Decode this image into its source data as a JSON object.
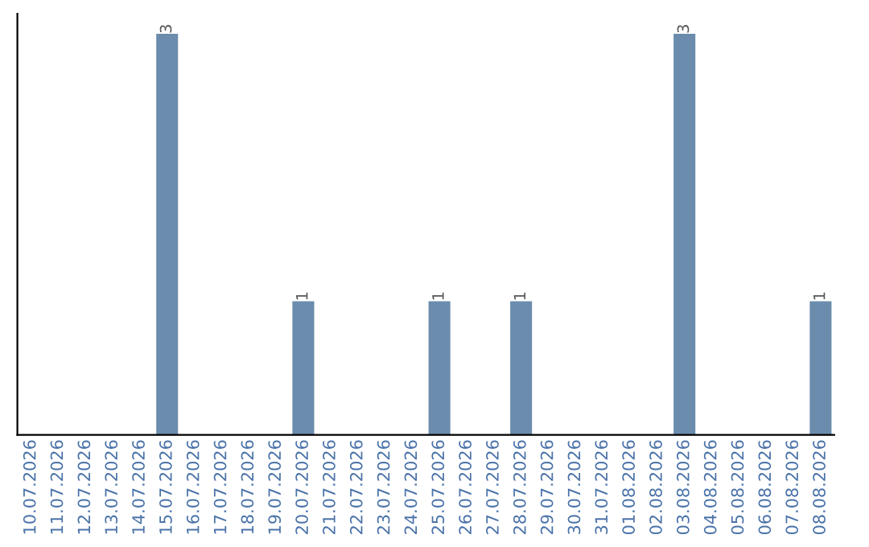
{
  "chart_data": {
    "type": "bar",
    "categories": [
      "10.07.2026",
      "11.07.2026",
      "12.07.2026",
      "13.07.2026",
      "14.07.2026",
      "15.07.2026",
      "16.07.2026",
      "17.07.2026",
      "18.07.2026",
      "19.07.2026",
      "20.07.2026",
      "21.07.2026",
      "22.07.2026",
      "23.07.2026",
      "24.07.2026",
      "25.07.2026",
      "26.07.2026",
      "27.07.2026",
      "28.07.2026",
      "29.07.2026",
      "30.07.2026",
      "31.07.2026",
      "01.08.2026",
      "02.08.2026",
      "03.08.2026",
      "04.08.2026",
      "05.08.2026",
      "06.08.2026",
      "07.08.2026",
      "08.08.2026"
    ],
    "values": [
      0,
      0,
      0,
      0,
      0,
      3,
      0,
      0,
      0,
      0,
      1,
      0,
      0,
      0,
      0,
      1,
      0,
      0,
      1,
      0,
      0,
      0,
      0,
      0,
      3,
      0,
      0,
      0,
      0,
      1
    ],
    "value_labels": [
      null,
      null,
      null,
      null,
      null,
      "3",
      null,
      null,
      null,
      null,
      "1",
      null,
      null,
      null,
      null,
      "1",
      null,
      null,
      "1",
      null,
      null,
      null,
      null,
      null,
      "3",
      null,
      null,
      null,
      null,
      "1"
    ],
    "color": "#6b8cac",
    "grid": false,
    "legend": false
  }
}
